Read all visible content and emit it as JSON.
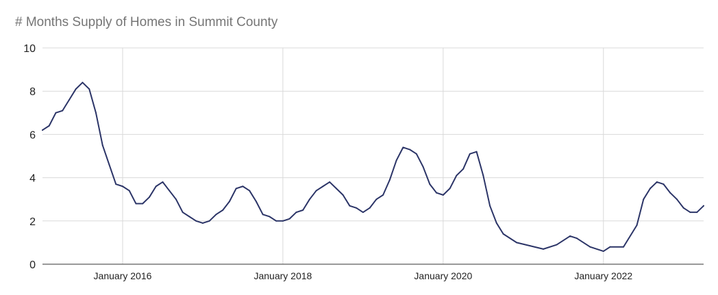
{
  "chart_data": {
    "type": "line",
    "title": "# Months Supply of Homes in Summit County",
    "xlabel": "",
    "ylabel": "",
    "ylim": [
      0,
      10
    ],
    "yticks": [
      0,
      2,
      4,
      6,
      8,
      10
    ],
    "xlim": [
      "2015-01",
      "2023-02"
    ],
    "xticks": [
      {
        "date": "2016-01",
        "label": "January 2016"
      },
      {
        "date": "2018-01",
        "label": "January 2018"
      },
      {
        "date": "2020-01",
        "label": "January 2020"
      },
      {
        "date": "2022-01",
        "label": "January 2022"
      }
    ],
    "grid": true,
    "legend": "none",
    "series": [
      {
        "color": "#2b3467",
        "points": [
          [
            "2015-01",
            6.2
          ],
          [
            "2015-02",
            6.4
          ],
          [
            "2015-03",
            7.0
          ],
          [
            "2015-04",
            7.1
          ],
          [
            "2015-05",
            7.6
          ],
          [
            "2015-06",
            8.1
          ],
          [
            "2015-07",
            8.4
          ],
          [
            "2015-08",
            8.1
          ],
          [
            "2015-09",
            7.0
          ],
          [
            "2015-10",
            5.5
          ],
          [
            "2015-11",
            4.6
          ],
          [
            "2015-12",
            3.7
          ],
          [
            "2016-01",
            3.6
          ],
          [
            "2016-02",
            3.4
          ],
          [
            "2016-03",
            2.8
          ],
          [
            "2016-04",
            2.8
          ],
          [
            "2016-05",
            3.1
          ],
          [
            "2016-06",
            3.6
          ],
          [
            "2016-07",
            3.8
          ],
          [
            "2016-08",
            3.4
          ],
          [
            "2016-09",
            3.0
          ],
          [
            "2016-10",
            2.4
          ],
          [
            "2016-11",
            2.2
          ],
          [
            "2016-12",
            2.0
          ],
          [
            "2017-01",
            1.9
          ],
          [
            "2017-02",
            2.0
          ],
          [
            "2017-03",
            2.3
          ],
          [
            "2017-04",
            2.5
          ],
          [
            "2017-05",
            2.9
          ],
          [
            "2017-06",
            3.5
          ],
          [
            "2017-07",
            3.6
          ],
          [
            "2017-08",
            3.4
          ],
          [
            "2017-09",
            2.9
          ],
          [
            "2017-10",
            2.3
          ],
          [
            "2017-11",
            2.2
          ],
          [
            "2017-12",
            2.0
          ],
          [
            "2018-01",
            2.0
          ],
          [
            "2018-02",
            2.1
          ],
          [
            "2018-03",
            2.4
          ],
          [
            "2018-04",
            2.5
          ],
          [
            "2018-05",
            3.0
          ],
          [
            "2018-06",
            3.4
          ],
          [
            "2018-07",
            3.6
          ],
          [
            "2018-08",
            3.8
          ],
          [
            "2018-09",
            3.5
          ],
          [
            "2018-10",
            3.2
          ],
          [
            "2018-11",
            2.7
          ],
          [
            "2018-12",
            2.6
          ],
          [
            "2019-01",
            2.4
          ],
          [
            "2019-02",
            2.6
          ],
          [
            "2019-03",
            3.0
          ],
          [
            "2019-04",
            3.2
          ],
          [
            "2019-05",
            3.9
          ],
          [
            "2019-06",
            4.8
          ],
          [
            "2019-07",
            5.4
          ],
          [
            "2019-08",
            5.3
          ],
          [
            "2019-09",
            5.1
          ],
          [
            "2019-10",
            4.5
          ],
          [
            "2019-11",
            3.7
          ],
          [
            "2019-12",
            3.3
          ],
          [
            "2020-01",
            3.2
          ],
          [
            "2020-02",
            3.5
          ],
          [
            "2020-03",
            4.1
          ],
          [
            "2020-04",
            4.4
          ],
          [
            "2020-05",
            5.1
          ],
          [
            "2020-06",
            5.2
          ],
          [
            "2020-07",
            4.1
          ],
          [
            "2020-08",
            2.7
          ],
          [
            "2020-09",
            1.9
          ],
          [
            "2020-10",
            1.4
          ],
          [
            "2020-12",
            1.0
          ],
          [
            "2021-02",
            0.85
          ],
          [
            "2021-04",
            0.7
          ],
          [
            "2021-06",
            0.9
          ],
          [
            "2021-08",
            1.3
          ],
          [
            "2021-09",
            1.2
          ],
          [
            "2021-11",
            0.8
          ],
          [
            "2022-01",
            0.6
          ],
          [
            "2022-02",
            0.8
          ],
          [
            "2022-04",
            0.8
          ],
          [
            "2022-06",
            1.8
          ],
          [
            "2022-07",
            3.0
          ],
          [
            "2022-08",
            3.5
          ],
          [
            "2022-09",
            3.8
          ],
          [
            "2022-10",
            3.7
          ],
          [
            "2022-11",
            3.3
          ],
          [
            "2022-12",
            3.0
          ],
          [
            "2023-01",
            2.6
          ],
          [
            "2023-02",
            2.4
          ],
          [
            "2023-03",
            2.4
          ],
          [
            "2023-04",
            2.7
          ]
        ]
      }
    ]
  }
}
